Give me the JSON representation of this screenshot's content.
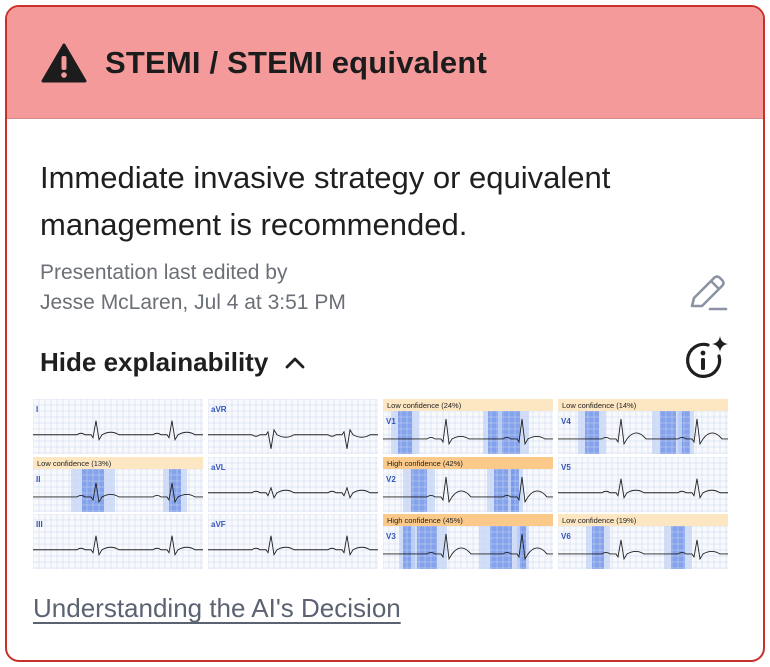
{
  "header": {
    "title": "STEMI / STEMI equivalent",
    "icon": "warning-triangle-icon",
    "background_color": "#f59a9a",
    "border_color": "#c9302c"
  },
  "recommendation": "Immediate invasive strategy or equivalent management is recommended.",
  "edited": {
    "line1": "Presentation last edited by",
    "line2": "Jesse McLaren, Jul 4 at 3:51 PM"
  },
  "explainability": {
    "toggle_label": "Hide explainability",
    "chevron": "chevron-up-icon",
    "info_icon": "ai-info-sparkle-icon"
  },
  "ecg_leads": [
    {
      "lead": "I",
      "badge": "",
      "badge_level": "none",
      "color": "#dfe7ef"
    },
    {
      "lead": "aVR",
      "badge": "",
      "badge_level": "none",
      "color": "#dfe7ef"
    },
    {
      "lead": "V1",
      "badge": "Low confidence (24%)",
      "badge_level": "low",
      "color": "#fde6c2"
    },
    {
      "lead": "V4",
      "badge": "Low confidence (14%)",
      "badge_level": "low",
      "color": "#fde6c2"
    },
    {
      "lead": "II",
      "badge": "Low confidence (13%)",
      "badge_level": "low",
      "color": "#fde6c2"
    },
    {
      "lead": "aVL",
      "badge": "",
      "badge_level": "none",
      "color": "#dfe7ef"
    },
    {
      "lead": "V2",
      "badge": "High confidence (42%)",
      "badge_level": "high",
      "color": "#fbc98a"
    },
    {
      "lead": "V5",
      "badge": "",
      "badge_level": "none",
      "color": "#dfe7ef"
    },
    {
      "lead": "III",
      "badge": "",
      "badge_level": "none",
      "color": "#dfe7ef"
    },
    {
      "lead": "aVF",
      "badge": "",
      "badge_level": "none",
      "color": "#dfe7ef"
    },
    {
      "lead": "V3",
      "badge": "High confidence (45%)",
      "badge_level": "high",
      "color": "#fbc98a"
    },
    {
      "lead": "V6",
      "badge": "Low confidence (19%)",
      "badge_level": "low",
      "color": "#fde6c2"
    }
  ],
  "footer_link": "Understanding the AI's Decision"
}
